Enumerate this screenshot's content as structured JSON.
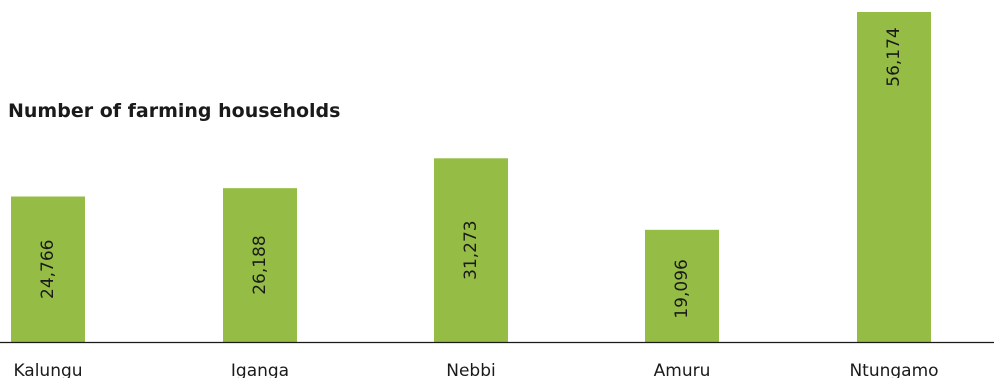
{
  "chart_data": {
    "type": "bar",
    "title": "Number of farming households",
    "categories": [
      "Kalungu",
      "Iganga",
      "Nebbi",
      "Amuru",
      "Ntungamo"
    ],
    "values": [
      24766,
      26188,
      31273,
      19096,
      56174
    ],
    "value_labels": [
      "24,766",
      "26,188",
      "31,273",
      "19,096",
      "56,174"
    ],
    "ylim": [
      0,
      57000
    ],
    "grid": false,
    "xlabel": "",
    "ylabel": ""
  },
  "colors": {
    "bar": "#95bd45",
    "axis": "#1a1a1a",
    "text": "#1a1a1a"
  }
}
